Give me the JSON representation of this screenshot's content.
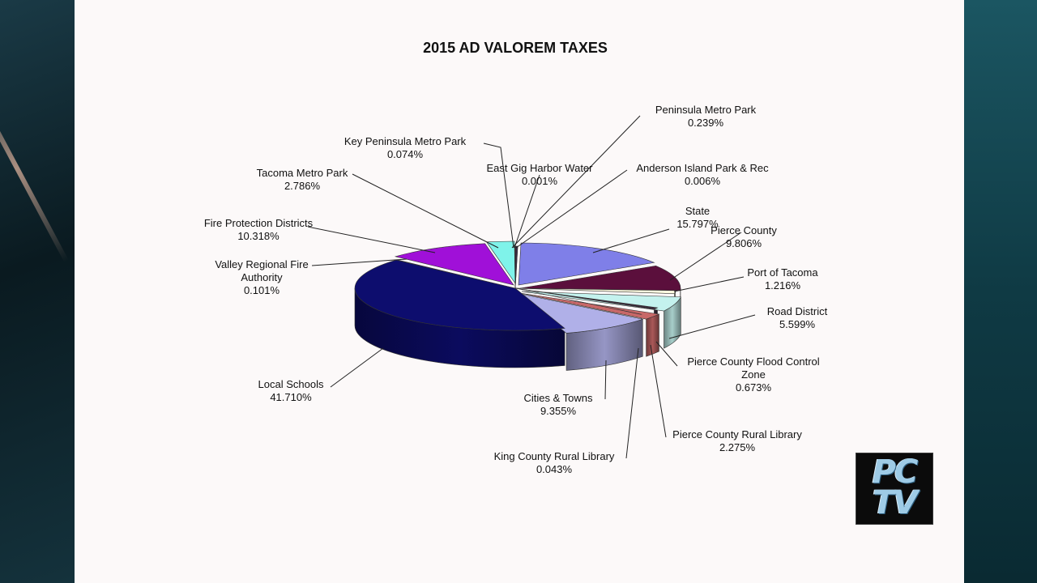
{
  "logo": {
    "line1": "PC",
    "line2": "TV"
  },
  "chart_data": {
    "type": "pie",
    "title": "2015 AD VALOREM TAXES",
    "style": "3d-exploded",
    "slices": [
      {
        "name": "Peninsula Metro Park",
        "value": 0.239,
        "label": "0.239%",
        "color": "#3a2a44"
      },
      {
        "name": "Anderson Island Park & Rec",
        "value": 0.006,
        "label": "0.006%",
        "color": "#6a4a80"
      },
      {
        "name": "State",
        "value": 15.797,
        "label": "15.797%",
        "color": "#7f7fe8"
      },
      {
        "name": "Pierce County",
        "value": 9.806,
        "label": "9.806%",
        "color": "#5b0f3c"
      },
      {
        "name": "Port of Tacoma",
        "value": 1.216,
        "label": "1.216%",
        "color": "#fcfadf"
      },
      {
        "name": "Road District",
        "value": 5.599,
        "label": "5.599%",
        "color": "#c4f2ee"
      },
      {
        "name": "Pierce County Flood Control Zone",
        "value": 0.673,
        "label": "0.673%",
        "color": "#3a2a3a"
      },
      {
        "name": "Pierce County Rural Library",
        "value": 2.275,
        "label": "2.275%",
        "color": "#c86868"
      },
      {
        "name": "King County Rural Library",
        "value": 0.043,
        "label": "0.043%",
        "color": "#13256e"
      },
      {
        "name": "Cities & Towns",
        "value": 9.355,
        "label": "9.355%",
        "color": "#b0b0e8"
      },
      {
        "name": "Local Schools",
        "value": 41.71,
        "label": "41.710%",
        "color": "#0d0d6e"
      },
      {
        "name": "Valley Regional Fire Authority",
        "value": 0.101,
        "label": "0.101%",
        "color": "#5060b8"
      },
      {
        "name": "Fire Protection Districts",
        "value": 10.318,
        "label": "10.318%",
        "color": "#a010d8"
      },
      {
        "name": "Tacoma Metro Park",
        "value": 2.786,
        "label": "2.786%",
        "color": "#7ff3ea"
      },
      {
        "name": "Key Peninsula Metro Park",
        "value": 0.074,
        "label": "0.074%",
        "color": "#8a3a1a"
      },
      {
        "name": "East Gig Harbor Water",
        "value": 0.001,
        "label": "0.001%",
        "color": "#402040"
      }
    ]
  }
}
